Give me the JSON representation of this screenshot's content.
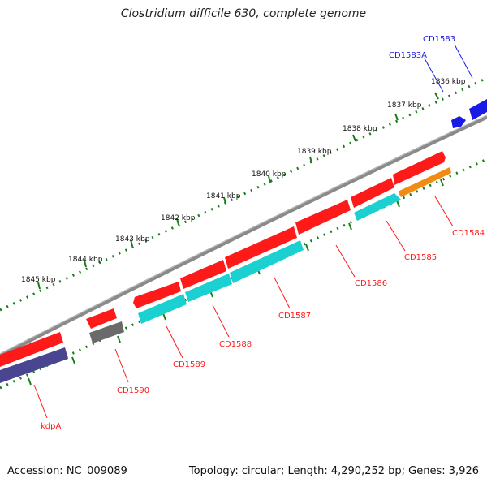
{
  "title": "Clostridium difficile 630, complete genome",
  "footer": {
    "accession": "Accession: NC_009089",
    "summary": "Topology: circular; Length: 4,290,252 bp; Genes: 3,926"
  },
  "colors": {
    "backbone": "#8a8a8a",
    "tick": "#1a7d1a",
    "cds": "#ff1a1a",
    "gene": "#1ad0d0",
    "misc": "#f08c14",
    "pseudo": "#4a4590",
    "other": "#6a6a6a",
    "blue_feature": "#1a1ae6"
  },
  "scale_labels": [
    "1836 kbp",
    "1837 kbp",
    "1838 kbp",
    "1839 kbp",
    "1840 kbp",
    "1841 kbp",
    "1842 kbp",
    "1843 kbp",
    "1844 kbp",
    "1845 kbp"
  ],
  "gene_labels": {
    "CD1583": "CD1583",
    "CD1583A": "CD1583A",
    "CD1584": "CD1584",
    "CD1585": "CD1585",
    "CD1586": "CD1586",
    "CD1587": "CD1587",
    "CD1588": "CD1588",
    "CD1589": "CD1589",
    "CD1590": "CD1590",
    "kdpA": "kdpA"
  }
}
